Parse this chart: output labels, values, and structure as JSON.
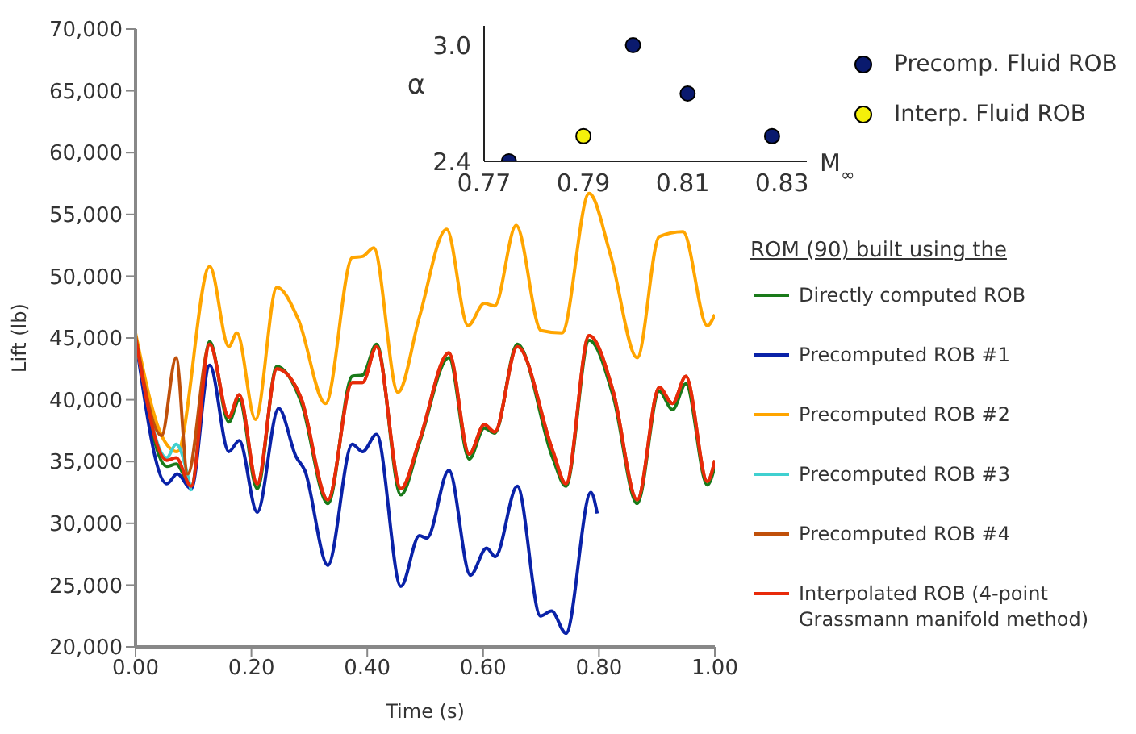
{
  "chart_data": [
    {
      "type": "line",
      "xlabel": "Time (s)",
      "ylabel": "Lift (lb)",
      "legend_title": "ROM (90) built using the",
      "legend": "right",
      "marker": "none",
      "line_style": "solid",
      "grid": false,
      "xlim": [
        0,
        1
      ],
      "xticks": [
        {
          "value": 0,
          "label": "0.00"
        },
        {
          "value": 0.2,
          "label": "0.20"
        },
        {
          "value": 0.4,
          "label": "0.40"
        },
        {
          "value": 0.6,
          "label": "0.60"
        },
        {
          "value": 0.8,
          "label": "0.80"
        },
        {
          "value": 1,
          "label": "1.00"
        }
      ],
      "ylim": [
        20000,
        70000
      ],
      "yticks": [
        {
          "value": 20000,
          "label": "20,000"
        },
        {
          "value": 25000,
          "label": "25,000"
        },
        {
          "value": 30000,
          "label": "30,000"
        },
        {
          "value": 35000,
          "label": "35,000"
        },
        {
          "value": 40000,
          "label": "40,000"
        },
        {
          "value": 45000,
          "label": "45,000"
        },
        {
          "value": 50000,
          "label": "50,000"
        },
        {
          "value": 55000,
          "label": "55,000"
        },
        {
          "value": 60000,
          "label": "60,000"
        },
        {
          "value": 65000,
          "label": "65,000"
        },
        {
          "value": 70000,
          "label": "70,000"
        }
      ],
      "series": [
        {
          "name": "Directly computed ROB",
          "color": "#1a7a1a",
          "x": [
            0,
            0.054,
            0.07,
            0.096,
            0.128,
            0.161,
            0.179,
            0.21,
            0.244,
            0.286,
            0.332,
            0.374,
            0.392,
            0.416,
            0.458,
            0.49,
            0.541,
            0.576,
            0.602,
            0.62,
            0.659,
            0.72,
            0.743,
            0.783,
            0.825,
            0.866,
            0.904,
            0.927,
            0.95,
            0.987,
            1
          ],
          "values": [
            45000,
            34600,
            34800,
            33000,
            44700,
            38200,
            40000,
            32800,
            42700,
            39800,
            31600,
            41900,
            42000,
            44500,
            32300,
            36500,
            43400,
            35200,
            37700,
            37300,
            44500,
            35300,
            33000,
            44800,
            40200,
            31600,
            40700,
            39200,
            41300,
            33100,
            34600
          ]
        },
        {
          "name": "Precomputed ROB #1",
          "color": "#0a22a8",
          "x": [
            0,
            0.054,
            0.072,
            0.096,
            0.128,
            0.161,
            0.179,
            0.21,
            0.247,
            0.277,
            0.292,
            0.332,
            0.374,
            0.392,
            0.416,
            0.458,
            0.49,
            0.503,
            0.541,
            0.578,
            0.606,
            0.621,
            0.659,
            0.699,
            0.718,
            0.743,
            0.786,
            0.797
          ],
          "values": [
            45000,
            33200,
            34000,
            32800,
            42800,
            35800,
            36700,
            30900,
            39300,
            35400,
            34300,
            26600,
            36400,
            35800,
            37200,
            24900,
            29000,
            28800,
            34300,
            25800,
            28000,
            27300,
            33000,
            22500,
            22900,
            21100,
            32500,
            30800
          ]
        },
        {
          "name": "Precomputed ROB #2",
          "color": "#ffa500",
          "x": [
            0,
            0.045,
            0.072,
            0.128,
            0.161,
            0.175,
            0.207,
            0.244,
            0.281,
            0.328,
            0.374,
            0.392,
            0.411,
            0.453,
            0.49,
            0.537,
            0.574,
            0.602,
            0.62,
            0.657,
            0.7,
            0.736,
            0.783,
            0.82,
            0.866,
            0.904,
            0.945,
            0.987,
            1
          ],
          "values": [
            45400,
            37100,
            35800,
            50800,
            44300,
            45400,
            38400,
            49100,
            46500,
            39700,
            51500,
            51600,
            52300,
            40600,
            46700,
            53800,
            46000,
            47800,
            47600,
            54100,
            45600,
            45400,
            56700,
            51700,
            43400,
            53200,
            53600,
            46000,
            46900
          ]
        },
        {
          "name": "Precomputed ROB #3",
          "color": "#40d0d0",
          "x": [
            0,
            0.054,
            0.07,
            0.096
          ],
          "values": [
            45000,
            35300,
            36400,
            32600
          ]
        },
        {
          "name": "Precomputed ROB #4",
          "color": "#c0500a",
          "x": [
            0,
            0.045,
            0.07,
            0.09,
            0.128,
            0.161,
            0.179,
            0.21,
            0.244,
            0.286,
            0.332,
            0.374,
            0.392,
            0.416,
            0.458,
            0.49,
            0.541,
            0.576,
            0.602,
            0.62,
            0.659,
            0.72,
            0.743,
            0.783,
            0.825,
            0.866,
            0.904,
            0.927,
            0.95,
            0.987,
            1
          ],
          "values": [
            45200,
            37100,
            43400,
            34000,
            44500,
            38600,
            40400,
            33200,
            42500,
            40100,
            31900,
            41400,
            41400,
            44300,
            32800,
            36700,
            43800,
            35600,
            38000,
            37400,
            44300,
            35900,
            33200,
            45200,
            40600,
            31900,
            41000,
            39700,
            41900,
            33400,
            35100
          ]
        },
        {
          "name": "Interpolated ROB (4-point Grassmann manifold method)",
          "color": "#e82a0a",
          "x": [
            0,
            0.054,
            0.07,
            0.096,
            0.128,
            0.161,
            0.179,
            0.21,
            0.244,
            0.286,
            0.332,
            0.374,
            0.392,
            0.416,
            0.458,
            0.49,
            0.541,
            0.576,
            0.602,
            0.62,
            0.659,
            0.72,
            0.743,
            0.783,
            0.825,
            0.866,
            0.904,
            0.927,
            0.95,
            0.987,
            1
          ],
          "values": [
            45000,
            35100,
            35300,
            33000,
            44500,
            38600,
            40400,
            33200,
            42500,
            40100,
            31900,
            41400,
            41400,
            44300,
            32800,
            36700,
            43800,
            35600,
            38000,
            37400,
            44300,
            35900,
            33200,
            45200,
            40600,
            31900,
            41000,
            39700,
            41900,
            33400,
            35100
          ]
        }
      ]
    },
    {
      "type": "scatter",
      "xlabel": "M$_{∞}$",
      "ylabel": "α",
      "legend": "right",
      "marker": "circle",
      "grid": false,
      "xlim": [
        0.77,
        0.835
      ],
      "xticks": [
        0.77,
        0.79,
        0.81,
        0.83
      ],
      "ylim": [
        2.4,
        3.1
      ],
      "yticks": [
        {
          "value": 2.4,
          "label": "2.4"
        },
        {
          "value": 3,
          "label": "3.0"
        }
      ],
      "series": [
        {
          "name": "Precomp. Fluid ROB",
          "color": "#0a1a6e",
          "x": [
            0.775,
            0.8,
            0.811,
            0.828
          ],
          "values": [
            2.4,
            3.0,
            2.75,
            2.53
          ]
        },
        {
          "name": "Interp. Fluid ROB",
          "color": "#f5f00a",
          "x": [
            0.79
          ],
          "values": [
            2.53
          ]
        }
      ]
    }
  ]
}
